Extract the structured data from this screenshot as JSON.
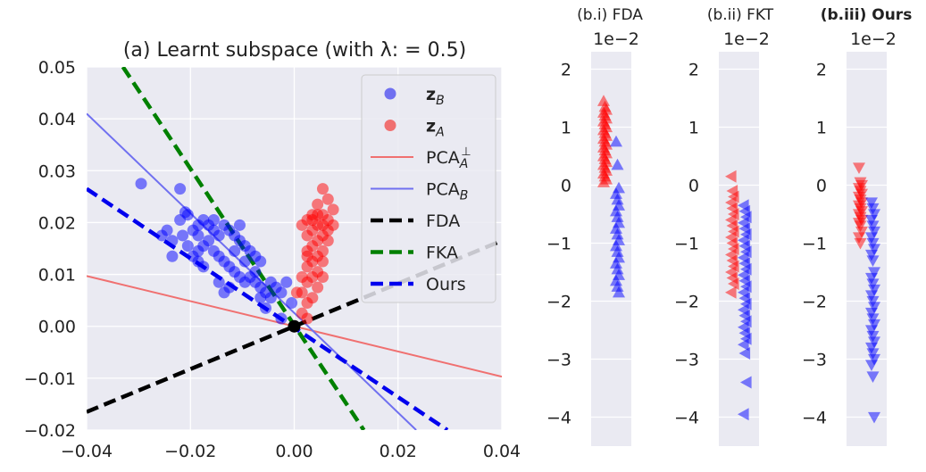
{
  "colors": {
    "bg": "#eaeaf2",
    "grid": "#ffffff",
    "red": "#ff0000",
    "blue": "#0000ff",
    "pca_a": "#f07070",
    "pca_b": "#7070f0",
    "fda": "#000000",
    "fka": "#008000",
    "ours": "#0000ee"
  },
  "chart_data": [
    {
      "type": "scatter",
      "title": "(a) Learnt subspace (with λ: = 0.5)",
      "xlim": [
        -0.04,
        0.04
      ],
      "ylim": [
        -0.02,
        0.05
      ],
      "xticks": [
        "−0.04",
        "−0.02",
        "0.00",
        "0.02",
        "0.04"
      ],
      "yticks": [
        "−0.02",
        "−0.01",
        "0.00",
        "0.01",
        "0.02",
        "0.03",
        "0.04",
        "0.05"
      ],
      "grid": true,
      "legend_position": "top-right",
      "legend": [
        {
          "label": "z_B",
          "kind": "marker",
          "color": "#7070f0"
        },
        {
          "label": "z_A",
          "kind": "marker",
          "color": "#f07070"
        },
        {
          "label": "PCA_A^⊥",
          "kind": "line",
          "color": "#f07070"
        },
        {
          "label": "PCA_B",
          "kind": "line",
          "color": "#7070f0"
        },
        {
          "label": "FDA",
          "kind": "dash",
          "color": "#000000"
        },
        {
          "label": "FKA",
          "kind": "dash",
          "color": "#008000"
        },
        {
          "label": "Ours",
          "kind": "dash",
          "color": "#0000ee"
        }
      ],
      "lines": [
        {
          "name": "PCA_A^⊥",
          "x": [
            -0.04,
            0.04
          ],
          "y": [
            0.0097,
            -0.0097
          ],
          "style": "solid"
        },
        {
          "name": "PCA_B",
          "x": [
            -0.04,
            0.0235
          ],
          "y": [
            0.041,
            -0.02
          ],
          "style": "solid"
        },
        {
          "name": "FDA",
          "x": [
            -0.04,
            0.04
          ],
          "y": [
            -0.0165,
            0.0165
          ],
          "style": "dashed"
        },
        {
          "name": "FKA",
          "x": [
            -0.033,
            0.0134
          ],
          "y": [
            0.05,
            -0.02
          ],
          "style": "dashed"
        },
        {
          "name": "Ours",
          "x": [
            -0.04,
            0.0295
          ],
          "y": [
            0.0265,
            -0.02
          ],
          "style": "dashed"
        }
      ],
      "origin": [
        0.0,
        0.0
      ],
      "series": [
        {
          "name": "z_B",
          "points": [
            [
              -0.0295,
              0.0275
            ],
            [
              -0.022,
              0.0265
            ],
            [
              -0.021,
              0.022
            ],
            [
              -0.0205,
              0.0215
            ],
            [
              -0.022,
              0.0205
            ],
            [
              -0.0245,
              0.0185
            ],
            [
              -0.0255,
              0.0175
            ],
            [
              -0.0235,
              0.0165
            ],
            [
              -0.0215,
              0.0175
            ],
            [
              -0.0195,
              0.0185
            ],
            [
              -0.0185,
              0.0195
            ],
            [
              -0.0175,
              0.0205
            ],
            [
              -0.0165,
              0.0195
            ],
            [
              -0.0155,
              0.0185
            ],
            [
              -0.0145,
              0.0175
            ],
            [
              -0.0135,
              0.0195
            ],
            [
              -0.0125,
              0.0185
            ],
            [
              -0.0115,
              0.0175
            ],
            [
              -0.0105,
              0.0165
            ],
            [
              -0.0105,
              0.0195
            ],
            [
              -0.0095,
              0.0155
            ],
            [
              -0.0085,
              0.0145
            ],
            [
              -0.0075,
              0.0135
            ],
            [
              -0.0065,
              0.0125
            ],
            [
              -0.0165,
              0.0165
            ],
            [
              -0.0175,
              0.0155
            ],
            [
              -0.0185,
              0.0145
            ],
            [
              -0.0195,
              0.0135
            ],
            [
              -0.0205,
              0.0155
            ],
            [
              -0.0155,
              0.0145
            ],
            [
              -0.0145,
              0.0135
            ],
            [
              -0.0135,
              0.0125
            ],
            [
              -0.0125,
              0.0115
            ],
            [
              -0.0115,
              0.0105
            ],
            [
              -0.0105,
              0.0095
            ],
            [
              -0.0095,
              0.0085
            ],
            [
              -0.0085,
              0.0095
            ],
            [
              -0.0075,
              0.0085
            ],
            [
              -0.0065,
              0.0075
            ],
            [
              -0.0055,
              0.0065
            ],
            [
              -0.0045,
              0.0085
            ],
            [
              -0.0035,
              0.0075
            ],
            [
              -0.0025,
              0.0065
            ],
            [
              -0.0015,
              0.0085
            ],
            [
              -0.0005,
              0.0045
            ],
            [
              -0.0025,
              0.0015
            ],
            [
              -0.0055,
              0.0035
            ],
            [
              -0.0065,
              0.0055
            ],
            [
              -0.0125,
              0.0075
            ],
            [
              -0.0135,
              0.0065
            ],
            [
              -0.0145,
              0.0085
            ],
            [
              -0.0175,
              0.0115
            ],
            [
              -0.0185,
              0.0125
            ],
            [
              -0.0235,
              0.0135
            ],
            [
              -0.0185,
              0.0175
            ],
            [
              -0.0155,
              0.0205
            ],
            [
              -0.0115,
              0.0145
            ],
            [
              -0.0095,
              0.0125
            ],
            [
              -0.0075,
              0.0105
            ],
            [
              -0.0045,
              0.0055
            ]
          ]
        },
        {
          "name": "z_A",
          "points": [
            [
              0.0055,
              0.0265
            ],
            [
              0.0065,
              0.0245
            ],
            [
              0.0075,
              0.0225
            ],
            [
              0.0045,
              0.0235
            ],
            [
              0.0035,
              0.0215
            ],
            [
              0.0025,
              0.0205
            ],
            [
              0.0055,
              0.0215
            ],
            [
              0.0065,
              0.0205
            ],
            [
              0.0045,
              0.0195
            ],
            [
              0.0035,
              0.0185
            ],
            [
              0.0055,
              0.0175
            ],
            [
              0.0025,
              0.0175
            ],
            [
              0.0045,
              0.0165
            ],
            [
              0.0035,
              0.0155
            ],
            [
              0.0055,
              0.0145
            ],
            [
              0.0025,
              0.0145
            ],
            [
              0.0045,
              0.0135
            ],
            [
              0.0035,
              0.0125
            ],
            [
              0.0055,
              0.0125
            ],
            [
              0.0025,
              0.0115
            ],
            [
              0.0045,
              0.0105
            ],
            [
              0.0035,
              0.0095
            ],
            [
              0.0015,
              0.0095
            ],
            [
              0.0055,
              0.0095
            ],
            [
              0.0025,
              0.0085
            ],
            [
              0.0045,
              0.0075
            ],
            [
              0.0015,
              0.0065
            ],
            [
              0.0035,
              0.0055
            ],
            [
              0.0025,
              0.0045
            ],
            [
              0.0005,
              0.0065
            ],
            [
              0.0015,
              0.0025
            ],
            [
              0.0025,
              0.0015
            ],
            [
              0.0065,
              0.0185
            ],
            [
              0.0075,
              0.0195
            ],
            [
              0.0015,
              0.0195
            ],
            [
              0.0045,
              0.0215
            ],
            [
              0.0065,
              0.0165
            ],
            [
              0.0035,
              0.0205
            ],
            [
              0.0055,
              0.0195
            ],
            [
              0.0025,
              0.0135
            ]
          ]
        }
      ]
    },
    {
      "type": "scatter",
      "title": "(b.i)  FDA",
      "offset_label": "1e−2",
      "ylim": [
        -4.5,
        2.3
      ],
      "yticks": [
        "−4",
        "−3",
        "−2",
        "−1",
        "0",
        "1",
        "2"
      ],
      "marker": "triangle-up",
      "series": [
        {
          "name": "A",
          "y": [
            1.45,
            1.35,
            1.3,
            1.25,
            1.2,
            1.15,
            1.1,
            1.05,
            1.0,
            0.95,
            0.9,
            0.85,
            0.8,
            0.75,
            0.7,
            0.65,
            0.6,
            0.55,
            0.5,
            0.45,
            0.4,
            0.35,
            0.3,
            0.25,
            0.2,
            0.15,
            0.1,
            0.05
          ]
        },
        {
          "name": "B",
          "y": [
            0.75,
            0.35,
            -0.05,
            -0.15,
            -0.25,
            -0.35,
            -0.45,
            -0.55,
            -0.65,
            -0.75,
            -0.85,
            -0.95,
            -1.05,
            -1.15,
            -1.25,
            -1.35,
            -1.45,
            -1.55,
            -1.65,
            -1.75,
            -1.85
          ]
        }
      ]
    },
    {
      "type": "scatter",
      "title": "(b.ii)  FKT",
      "offset_label": "1e−2",
      "ylim": [
        -4.5,
        2.3
      ],
      "yticks": [
        "−4",
        "−3",
        "−2",
        "−1",
        "0",
        "1",
        "2"
      ],
      "marker": "triangle-left",
      "series": [
        {
          "name": "A",
          "y": [
            0.15,
            -0.1,
            -0.2,
            -0.3,
            -0.4,
            -0.5,
            -0.6,
            -0.7,
            -0.8,
            -0.9,
            -1.0,
            -1.1,
            -1.2,
            -1.3,
            -1.4,
            -1.5,
            -1.6,
            -1.7,
            -1.85
          ]
        },
        {
          "name": "B",
          "y": [
            -0.35,
            -0.45,
            -0.55,
            -0.65,
            -0.75,
            -0.85,
            -0.95,
            -1.05,
            -1.15,
            -1.25,
            -1.35,
            -1.45,
            -1.55,
            -1.65,
            -1.75,
            -1.85,
            -1.95,
            -2.05,
            -2.15,
            -2.25,
            -2.35,
            -2.45,
            -2.55,
            -2.65,
            -2.75,
            -2.9,
            -3.4,
            -3.95
          ]
        }
      ]
    },
    {
      "type": "scatter",
      "title": "(b.iii) Ours",
      "offset_label": "1e−2",
      "ylim": [
        -4.5,
        2.3
      ],
      "yticks": [
        "−4",
        "−3",
        "−2",
        "−1",
        "0",
        "1",
        "2"
      ],
      "marker": "triangle-down",
      "series": [
        {
          "name": "A",
          "y": [
            0.3,
            0.05,
            0.0,
            -0.05,
            -0.1,
            -0.15,
            -0.2,
            -0.25,
            -0.3,
            -0.35,
            -0.4,
            -0.45,
            -0.5,
            -0.55,
            -0.6,
            -0.65,
            -0.7,
            -0.8,
            -0.9,
            -1.0
          ]
        },
        {
          "name": "B",
          "y": [
            -0.3,
            -0.4,
            -0.5,
            -0.6,
            -0.7,
            -0.8,
            -0.9,
            -1.0,
            -1.1,
            -1.2,
            -1.3,
            -1.5,
            -1.6,
            -1.7,
            -1.8,
            -1.9,
            -2.0,
            -2.1,
            -2.2,
            -2.3,
            -2.4,
            -2.5,
            -2.6,
            -2.7,
            -2.8,
            -2.9,
            -3.0,
            -3.1,
            -3.3,
            -4.0
          ]
        }
      ]
    }
  ]
}
